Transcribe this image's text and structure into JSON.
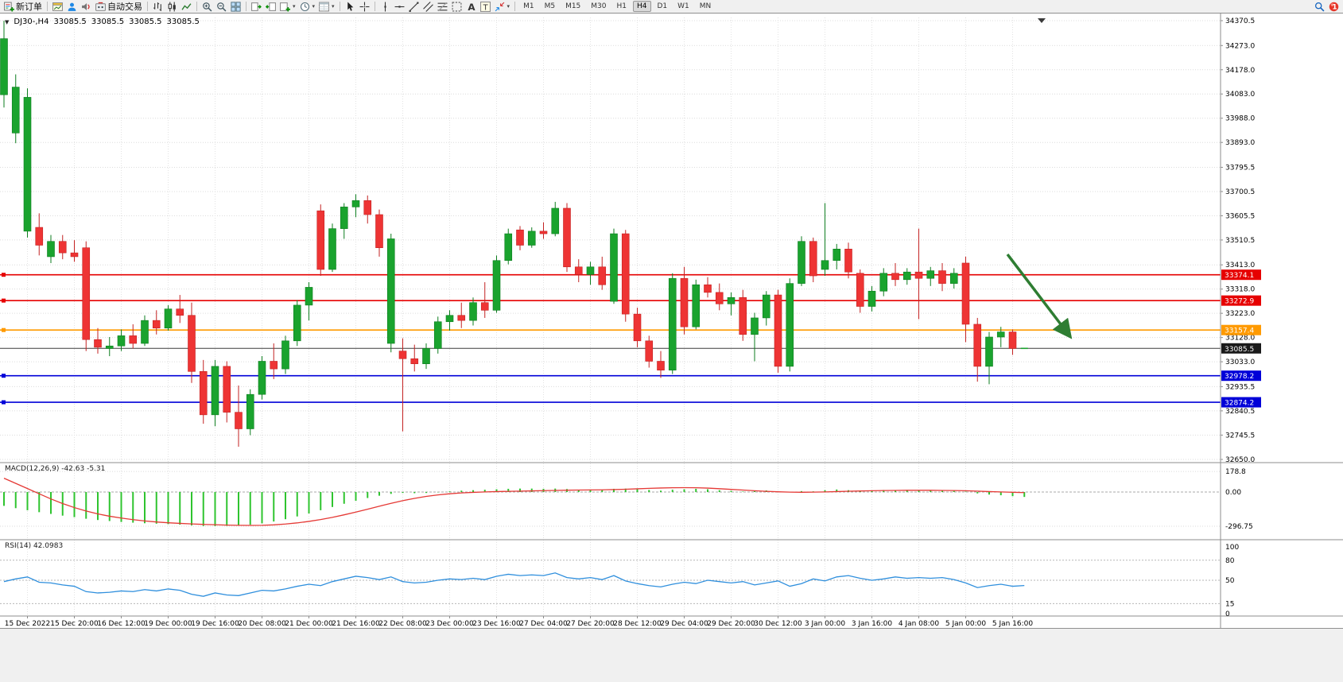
{
  "toolbar": {
    "buttons": [
      {
        "name": "new-order",
        "icon": "neworder",
        "label": "新订单"
      },
      {
        "sep": true
      },
      {
        "name": "charts",
        "icon": "charts"
      },
      {
        "name": "profiles",
        "icon": "profile"
      },
      {
        "name": "alerts",
        "icon": "alerts"
      },
      {
        "name": "auto-trading",
        "icon": "autotrade",
        "label": "自动交易"
      },
      {
        "sep": true
      },
      {
        "name": "bar-chart-mode",
        "icon": "barchart"
      },
      {
        "name": "candlestick-mode",
        "icon": "candlechart"
      },
      {
        "name": "line-chart-mode",
        "icon": "linechart"
      },
      {
        "sep": true
      },
      {
        "name": "zoom-in",
        "icon": "zoomin"
      },
      {
        "name": "zoom-out",
        "icon": "zoomout"
      },
      {
        "name": "tile-windows",
        "icon": "tile"
      },
      {
        "sep": true
      },
      {
        "name": "auto-scroll",
        "icon": "autoscroll"
      },
      {
        "name": "chart-shift",
        "icon": "chartshift"
      },
      {
        "name": "new-chart",
        "icon": "newchart",
        "caret": true
      },
      {
        "name": "period-selector",
        "icon": "clock",
        "caret": true
      },
      {
        "name": "templates",
        "icon": "template",
        "caret": true
      },
      {
        "sep": true
      },
      {
        "name": "cursor-tool",
        "icon": "cursor"
      },
      {
        "name": "crosshair-tool",
        "icon": "crosshair"
      },
      {
        "sep": true
      },
      {
        "name": "vertical-line-tool",
        "icon": "vline"
      },
      {
        "name": "horizontal-line-tool",
        "icon": "hline"
      },
      {
        "name": "trendline-tool",
        "icon": "trendline"
      },
      {
        "name": "channel-tool",
        "icon": "channel"
      },
      {
        "name": "fibonacci-tool",
        "icon": "fibo"
      },
      {
        "name": "shapes-tool",
        "icon": "shapes"
      },
      {
        "name": "text-tool",
        "icon": "texta"
      },
      {
        "name": "label-tool",
        "icon": "textt"
      },
      {
        "name": "arrows-tool",
        "icon": "arrows",
        "caret": true
      },
      {
        "sep": true
      }
    ],
    "timeframes": [
      "M1",
      "M5",
      "M15",
      "M30",
      "H1",
      "H4",
      "D1",
      "W1",
      "MN"
    ],
    "active_timeframe": "H4",
    "right_icons": [
      {
        "name": "search",
        "icon": "search"
      },
      {
        "name": "mql5-community",
        "icon": "redball",
        "badge": "1"
      }
    ]
  },
  "chart": {
    "readout": {
      "symbol": "DJ30-,H4",
      "open": "33085.5",
      "high": "33085.5",
      "low": "33085.5",
      "close": "33085.5"
    },
    "price_axis": [
      "34370.5",
      "34273.0",
      "34178.0",
      "34083.0",
      "33988.0",
      "33893.0",
      "33795.5",
      "33700.5",
      "33605.5",
      "33510.5",
      "33413.0",
      "33318.0",
      "33223.0",
      "33128.0",
      "33033.0",
      "32935.5",
      "32840.5",
      "32745.5",
      "32650.0"
    ],
    "time_axis": [
      {
        "idx": 2,
        "label": "15 Dec 2022"
      },
      {
        "idx": 6,
        "label": "15 Dec 20:00"
      },
      {
        "idx": 10,
        "label": "16 Dec 12:00"
      },
      {
        "idx": 14,
        "label": "19 Dec 00:00"
      },
      {
        "idx": 18,
        "label": "19 Dec 16:00"
      },
      {
        "idx": 22,
        "label": "20 Dec 08:00"
      },
      {
        "idx": 26,
        "label": "21 Dec 00:00"
      },
      {
        "idx": 30,
        "label": "21 Dec 16:00"
      },
      {
        "idx": 34,
        "label": "22 Dec 08:00"
      },
      {
        "idx": 38,
        "label": "23 Dec 00:00"
      },
      {
        "idx": 42,
        "label": "23 Dec 16:00"
      },
      {
        "idx": 46,
        "label": "27 Dec 04:00"
      },
      {
        "idx": 50,
        "label": "27 Dec 20:00"
      },
      {
        "idx": 54,
        "label": "28 Dec 12:00"
      },
      {
        "idx": 58,
        "label": "29 Dec 04:00"
      },
      {
        "idx": 62,
        "label": "29 Dec 20:00"
      },
      {
        "idx": 66,
        "label": "30 Dec 12:00"
      },
      {
        "idx": 70,
        "label": "3 Jan 00:00"
      },
      {
        "idx": 74,
        "label": "3 Jan 16:00"
      },
      {
        "idx": 78,
        "label": "4 Jan 08:00"
      },
      {
        "idx": 82,
        "label": "5 Jan 00:00"
      },
      {
        "idx": 86,
        "label": "5 Jan 16:00"
      }
    ],
    "hlines": [
      {
        "price": 33374.1,
        "label": "33374.1",
        "color": "#e60000"
      },
      {
        "price": 33272.9,
        "label": "33272.9",
        "color": "#e60000"
      },
      {
        "price": 33157.4,
        "label": "33157.4",
        "color": "#ff9a00"
      },
      {
        "price": 33085.5,
        "label": "33085.5",
        "color": "#3c3c3c",
        "style": "bid"
      },
      {
        "price": 32978.2,
        "label": "32978.2",
        "color": "#0000d8"
      },
      {
        "price": 32874.2,
        "label": "32874.2",
        "color": "#0000d8"
      }
    ],
    "annotation_arrow": {
      "color": "#2e7d32",
      "direction": "down-right"
    },
    "colors": {
      "bull": "#1aa32e",
      "bull_stroke": "#0d7d1f",
      "bear": "#ee3434",
      "bear_stroke": "#c32222",
      "macd_hist": "#2fc42f",
      "macd_signal": "#e53935",
      "rsi_line": "#2f8fdd"
    }
  },
  "chart_data": {
    "type": "candlestick",
    "symbol": "DJ30-",
    "period": "H4",
    "ylim": [
      32650.0,
      34370.5
    ],
    "ohlc": [
      [
        34080,
        34370,
        34030,
        34300
      ],
      [
        33930,
        34160,
        33890,
        34110
      ],
      [
        33545,
        34105,
        33520,
        34070
      ],
      [
        33560,
        33615,
        33450,
        33490
      ],
      [
        33445,
        33530,
        33420,
        33505
      ],
      [
        33505,
        33530,
        33435,
        33460
      ],
      [
        33460,
        33510,
        33425,
        33445
      ],
      [
        33480,
        33505,
        33075,
        33120
      ],
      [
        33120,
        33165,
        33065,
        33090
      ],
      [
        33085,
        33130,
        33055,
        33095
      ],
      [
        33095,
        33160,
        33075,
        33135
      ],
      [
        33135,
        33180,
        33085,
        33105
      ],
      [
        33105,
        33215,
        33095,
        33195
      ],
      [
        33195,
        33235,
        33140,
        33165
      ],
      [
        33165,
        33255,
        33155,
        33240
      ],
      [
        33240,
        33295,
        33185,
        33215
      ],
      [
        33215,
        33265,
        32950,
        32995
      ],
      [
        32995,
        33040,
        32790,
        32825
      ],
      [
        32825,
        33040,
        32780,
        33015
      ],
      [
        33015,
        33035,
        32795,
        32835
      ],
      [
        32835,
        32940,
        32700,
        32770
      ],
      [
        32770,
        32925,
        32745,
        32905
      ],
      [
        32905,
        33055,
        32885,
        33035
      ],
      [
        33035,
        33105,
        32965,
        33005
      ],
      [
        33005,
        33135,
        32985,
        33115
      ],
      [
        33115,
        33275,
        33095,
        33255
      ],
      [
        33255,
        33345,
        33195,
        33325
      ],
      [
        33625,
        33650,
        33370,
        33395
      ],
      [
        33395,
        33575,
        33385,
        33555
      ],
      [
        33555,
        33655,
        33515,
        33640
      ],
      [
        33640,
        33690,
        33600,
        33665
      ],
      [
        33665,
        33685,
        33575,
        33610
      ],
      [
        33610,
        33630,
        33445,
        33480
      ],
      [
        33105,
        33535,
        33070,
        33515
      ],
      [
        33075,
        33125,
        32760,
        33045
      ],
      [
        33045,
        33100,
        32995,
        33025
      ],
      [
        33025,
        33105,
        33005,
        33085
      ],
      [
        33085,
        33210,
        33065,
        33190
      ],
      [
        33190,
        33235,
        33155,
        33215
      ],
      [
        33215,
        33265,
        33165,
        33195
      ],
      [
        33195,
        33285,
        33175,
        33265
      ],
      [
        33265,
        33345,
        33205,
        33235
      ],
      [
        33235,
        33450,
        33225,
        33430
      ],
      [
        33430,
        33555,
        33415,
        33535
      ],
      [
        33550,
        33565,
        33470,
        33490
      ],
      [
        33490,
        33560,
        33480,
        33545
      ],
      [
        33545,
        33580,
        33515,
        33535
      ],
      [
        33535,
        33660,
        33525,
        33635
      ],
      [
        33635,
        33655,
        33385,
        33405
      ],
      [
        33405,
        33435,
        33345,
        33375
      ],
      [
        33375,
        33425,
        33335,
        33405
      ],
      [
        33405,
        33445,
        33315,
        33335
      ],
      [
        33270,
        33555,
        33260,
        33535
      ],
      [
        33535,
        33550,
        33190,
        33220
      ],
      [
        33220,
        33245,
        33090,
        33115
      ],
      [
        33115,
        33135,
        33010,
        33035
      ],
      [
        33035,
        33075,
        32970,
        33000
      ],
      [
        33000,
        33380,
        32985,
        33360
      ],
      [
        33360,
        33405,
        33140,
        33170
      ],
      [
        33170,
        33355,
        33160,
        33335
      ],
      [
        33335,
        33365,
        33285,
        33305
      ],
      [
        33305,
        33340,
        33235,
        33260
      ],
      [
        33260,
        33305,
        33215,
        33285
      ],
      [
        33285,
        33315,
        33115,
        33140
      ],
      [
        33140,
        33225,
        33035,
        33205
      ],
      [
        33205,
        33310,
        33175,
        33295
      ],
      [
        33295,
        33315,
        32990,
        33015
      ],
      [
        33015,
        33360,
        32995,
        33340
      ],
      [
        33340,
        33525,
        33330,
        33505
      ],
      [
        33505,
        33520,
        33345,
        33370
      ],
      [
        33395,
        33655,
        33370,
        33430
      ],
      [
        33430,
        33495,
        33395,
        33475
      ],
      [
        33475,
        33500,
        33360,
        33385
      ],
      [
        33380,
        33395,
        33225,
        33250
      ],
      [
        33250,
        33330,
        33230,
        33310
      ],
      [
        33310,
        33400,
        33290,
        33380
      ],
      [
        33380,
        33420,
        33330,
        33355
      ],
      [
        33355,
        33400,
        33335,
        33385
      ],
      [
        33385,
        33555,
        33200,
        33360
      ],
      [
        33360,
        33405,
        33330,
        33390
      ],
      [
        33390,
        33420,
        33310,
        33340
      ],
      [
        33340,
        33400,
        33320,
        33380
      ],
      [
        33420,
        33445,
        33110,
        33180
      ],
      [
        33180,
        33205,
        32955,
        33015
      ],
      [
        33015,
        33150,
        32945,
        33130
      ],
      [
        33130,
        33170,
        33090,
        33150
      ],
      [
        33150,
        33160,
        33060,
        33085
      ],
      [
        33085.5,
        33085.5,
        33085.5,
        33085.5
      ]
    ],
    "indicators": {
      "macd": {
        "label": "MACD(12,26,9) -42.63 -5.31",
        "params": "12,26,9",
        "value": -42.63,
        "signal_value": -5.31,
        "axis": [
          "178.8",
          "0.00",
          "-296.75"
        ],
        "histogram": [
          -120,
          -140,
          -158,
          -175,
          -190,
          -205,
          -218,
          -232,
          -243,
          -252,
          -260,
          -266,
          -271,
          -275,
          -279,
          -283,
          -290,
          -295,
          -296,
          -294,
          -290,
          -284,
          -272,
          -256,
          -236,
          -212,
          -186,
          -158,
          -130,
          -102,
          -76,
          -52,
          -32,
          -16,
          -8,
          -10,
          -8,
          -2,
          6,
          12,
          16,
          20,
          24,
          28,
          30,
          30,
          28,
          30,
          26,
          20,
          22,
          18,
          28,
          30,
          24,
          18,
          12,
          20,
          24,
          28,
          24,
          16,
          10,
          4,
          8,
          14,
          4,
          2,
          8,
          6,
          16,
          22,
          16,
          10,
          14,
          18,
          16,
          18,
          14,
          16,
          12,
          14,
          4,
          -12,
          -22,
          -28,
          -36,
          -42.63
        ],
        "signal": [
          120,
          75,
          30,
          -15,
          -60,
          -100,
          -135,
          -165,
          -190,
          -210,
          -226,
          -240,
          -251,
          -260,
          -267,
          -272,
          -277,
          -281,
          -284,
          -287,
          -289,
          -290,
          -289,
          -285,
          -278,
          -268,
          -255,
          -239,
          -220,
          -198,
          -174,
          -149,
          -123,
          -98,
          -75,
          -55,
          -38,
          -25,
          -15,
          -8,
          -3,
          1,
          4,
          6,
          8,
          10,
          12,
          14,
          16,
          17,
          18,
          19,
          21,
          24,
          28,
          32,
          35,
          37,
          38,
          37,
          34,
          29,
          23,
          17,
          11,
          6,
          2,
          -1,
          -2,
          -1,
          1,
          4,
          7,
          9,
          11,
          13,
          14,
          15,
          15,
          15,
          14,
          13,
          11,
          8,
          4,
          1,
          -2,
          -5.31
        ]
      },
      "rsi": {
        "label": "RSI(14) 42.0983",
        "period": 14,
        "value": 42.0983,
        "levels": [
          80,
          50,
          15
        ],
        "axis": [
          "100",
          "80",
          "50",
          "15",
          "0"
        ],
        "values": [
          48,
          52,
          55,
          47,
          46,
          43,
          41,
          33,
          31,
          32,
          34,
          33,
          36,
          34,
          37,
          35,
          29,
          26,
          31,
          28,
          27,
          31,
          35,
          34,
          37,
          41,
          44,
          42,
          48,
          52,
          56,
          54,
          51,
          55,
          48,
          46,
          47,
          50,
          52,
          51,
          53,
          51,
          56,
          59,
          57,
          58,
          57,
          61,
          54,
          52,
          54,
          51,
          57,
          49,
          45,
          42,
          40,
          44,
          47,
          45,
          50,
          48,
          46,
          48,
          43,
          46,
          49,
          41,
          45,
          52,
          49,
          55,
          57,
          53,
          50,
          52,
          55,
          53,
          54,
          53,
          54,
          51,
          46,
          39,
          42,
          44,
          41,
          42.1
        ]
      }
    }
  }
}
